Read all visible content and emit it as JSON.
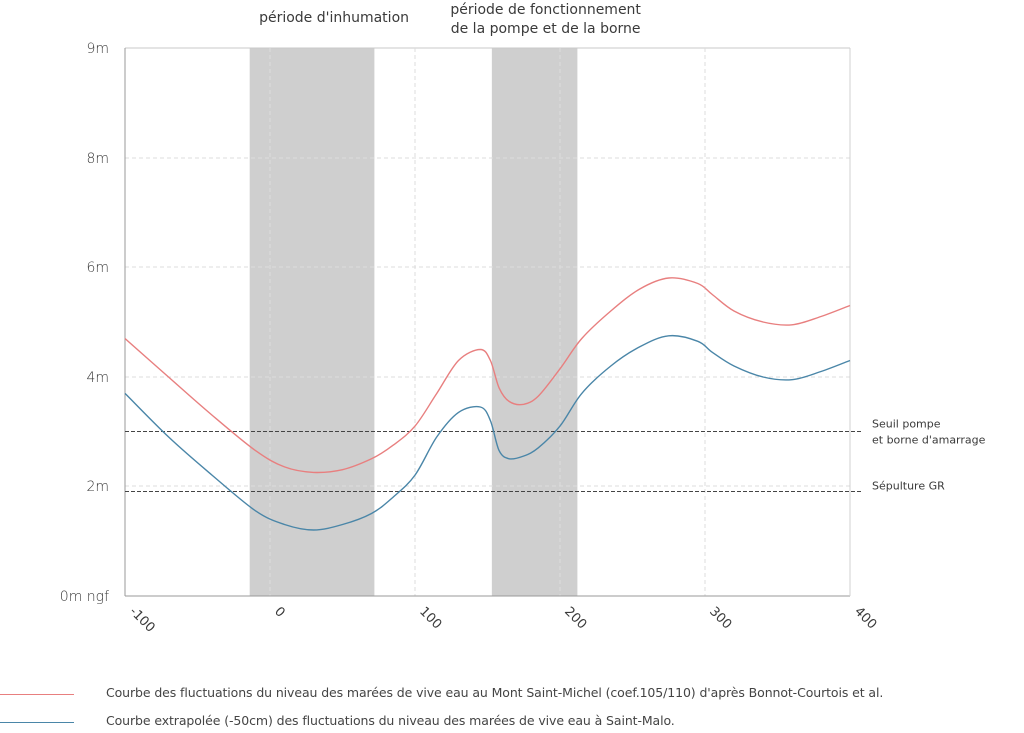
{
  "chart_data": {
    "type": "line",
    "xlim": [
      -100,
      400
    ],
    "x_ticks": [
      -100,
      0,
      100,
      200,
      300,
      400
    ],
    "x_tick_labels": [
      "-100",
      "0",
      "100",
      "200",
      "300",
      "400"
    ],
    "y_ticks": [
      0,
      2,
      4,
      6,
      8,
      9
    ],
    "y_tick_labels": [
      "0m ngf",
      "2m",
      "4m",
      "6m",
      "8m",
      "9m"
    ],
    "ylim": [
      0,
      9
    ],
    "grid": true,
    "bands": [
      {
        "label_lines": [
          "période d'inhumation"
        ],
        "x0": -14,
        "x1": 72,
        "color": "#cfcfcf"
      },
      {
        "label_lines": [
          "période de fonctionnement",
          "de la pompe et de la borne"
        ],
        "x0": 153,
        "x1": 212,
        "color": "#cfcfcf"
      }
    ],
    "thresholds": [
      {
        "label_lines": [
          "Seuil pompe",
          "et borne d'amarrage"
        ],
        "y": 3.0
      },
      {
        "label_lines": [
          "Sépulture GR"
        ],
        "y": 1.9
      }
    ],
    "series": [
      {
        "name": "Courbe des fluctuations du niveau des marées de vive eau au Mont Saint-Michel (coef.105/110) d'après Bonnot-Courtois et al.",
        "color": "#e87f7f",
        "x": [
          -100,
          -70,
          -40,
          -10,
          10,
          30,
          50,
          70,
          85,
          100,
          115,
          130,
          145,
          152,
          158,
          165,
          175,
          185,
          200,
          215,
          235,
          255,
          275,
          295,
          305,
          320,
          340,
          360,
          380,
          400
        ],
        "y": [
          4.7,
          4.0,
          3.3,
          2.65,
          2.35,
          2.25,
          2.3,
          2.5,
          2.75,
          3.1,
          3.7,
          4.3,
          4.5,
          4.3,
          3.8,
          3.55,
          3.5,
          3.65,
          4.15,
          4.7,
          5.2,
          5.6,
          5.8,
          5.7,
          5.5,
          5.2,
          5.0,
          4.95,
          5.1,
          5.3
        ]
      },
      {
        "name": "Courbe extrapolée (-50cm) des fluctuations du niveau des marées de vive eau à Saint-Malo.",
        "color": "#4a86a8",
        "x": [
          -100,
          -70,
          -40,
          -10,
          10,
          30,
          50,
          70,
          85,
          100,
          115,
          130,
          145,
          152,
          158,
          165,
          175,
          185,
          200,
          215,
          235,
          255,
          275,
          295,
          305,
          320,
          340,
          360,
          380,
          400
        ],
        "y": [
          3.7,
          2.9,
          2.2,
          1.55,
          1.3,
          1.2,
          1.3,
          1.5,
          1.8,
          2.2,
          2.9,
          3.35,
          3.45,
          3.2,
          2.65,
          2.5,
          2.55,
          2.7,
          3.1,
          3.7,
          4.2,
          4.55,
          4.75,
          4.65,
          4.45,
          4.2,
          4.0,
          3.95,
          4.1,
          4.3
        ]
      }
    ]
  }
}
